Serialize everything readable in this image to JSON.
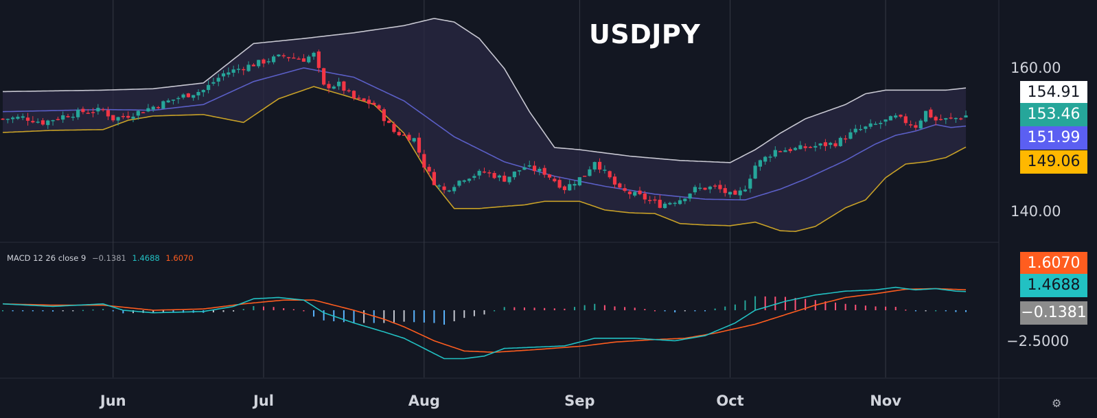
{
  "title": "USDJPY",
  "colors": {
    "background": "#131722",
    "grid": "#363a45",
    "up": "#26a69a",
    "down": "#f23645",
    "bb_upper": "#c8c8d2",
    "bb_basis": "#5b5fc7",
    "bb_lower": "#c9a227",
    "bb_fill": "#2a2843",
    "macd_line": "#22c1c3",
    "signal_line": "#ff5d1f",
    "hist_pos_up": "#26a69a",
    "hist_pos_down": "#ff5277",
    "hist_neg_down": "#5ab4ff",
    "hist_neg_up": "#c4c7d0"
  },
  "macd_legend": {
    "label": "MACD 12 26 close 9",
    "hist": "−0.1381",
    "macd": "1.4688",
    "signal": "1.6070"
  },
  "price_axis": {
    "ticks": [
      {
        "value": 160,
        "label": "160.00"
      },
      {
        "value": 140,
        "label": "140.00"
      }
    ],
    "badges": [
      {
        "label": "154.91",
        "value": 154.91,
        "bg": "#ffffff",
        "fg": "#131722"
      },
      {
        "label": "153.46",
        "value": 153.46,
        "bg": "#26a69a",
        "fg": "#ffffff"
      },
      {
        "label": "151.99",
        "value": 151.99,
        "bg": "#5b5ff2",
        "fg": "#ffffff"
      },
      {
        "label": "149.06",
        "value": 149.06,
        "bg": "#ffb800",
        "fg": "#131722"
      }
    ]
  },
  "macd_axis": {
    "ticks": [
      {
        "value": -2.5,
        "label": "−2.5000"
      }
    ],
    "badges": [
      {
        "label": "1.6070",
        "value": 1.607,
        "bg": "#ff5d1f",
        "fg": "#ffffff"
      },
      {
        "label": "1.4688",
        "value": 1.4688,
        "bg": "#22c1c3",
        "fg": "#131722"
      },
      {
        "label": "−0.1381",
        "value": -0.1381,
        "bg": "#8c8c8c",
        "fg": "#ffffff"
      }
    ]
  },
  "time_axis": {
    "labels": [
      {
        "label": "Jun",
        "day": 22
      },
      {
        "label": "Jul",
        "day": 52
      },
      {
        "label": "Aug",
        "day": 84
      },
      {
        "label": "Sep",
        "day": 115
      },
      {
        "label": "Oct",
        "day": 145
      },
      {
        "label": "Nov",
        "day": 176
      }
    ]
  },
  "chart_data": {
    "type": "candlestick",
    "title": "USDJPY",
    "day_range": [
      0,
      198
    ],
    "price_range": [
      134.75,
      168.4
    ],
    "macd_range": [
      -4.1,
      2.58
    ],
    "price_anchors": [
      [
        0,
        153.0
      ],
      [
        4,
        153.2
      ],
      [
        8,
        152.5
      ],
      [
        12,
        153.4
      ],
      [
        16,
        154.0
      ],
      [
        20,
        154.2
      ],
      [
        22,
        153.0
      ],
      [
        25,
        153.5
      ],
      [
        28,
        154.2
      ],
      [
        32,
        155.2
      ],
      [
        36,
        156.2
      ],
      [
        40,
        157.0
      ],
      [
        44,
        159.3
      ],
      [
        48,
        160.2
      ],
      [
        52,
        161.0
      ],
      [
        56,
        161.8
      ],
      [
        60,
        161.3
      ],
      [
        62,
        162.0
      ],
      [
        64,
        157.5
      ],
      [
        67,
        157.8
      ],
      [
        70,
        155.8
      ],
      [
        74,
        155.0
      ],
      [
        78,
        151.2
      ],
      [
        82,
        150.2
      ],
      [
        84,
        146.5
      ],
      [
        86,
        144.2
      ],
      [
        88,
        143.0
      ],
      [
        92,
        144.8
      ],
      [
        96,
        145.6
      ],
      [
        100,
        144.6
      ],
      [
        104,
        146.3
      ],
      [
        108,
        145.5
      ],
      [
        112,
        143.3
      ],
      [
        116,
        145.2
      ],
      [
        118,
        147.2
      ],
      [
        120,
        145.5
      ],
      [
        123,
        143.0
      ],
      [
        127,
        142.2
      ],
      [
        131,
        141.0
      ],
      [
        135,
        141.8
      ],
      [
        138,
        143.2
      ],
      [
        142,
        143.5
      ],
      [
        146,
        142.0
      ],
      [
        148,
        143.5
      ],
      [
        150,
        146.5
      ],
      [
        154,
        148.6
      ],
      [
        158,
        148.8
      ],
      [
        162,
        149.2
      ],
      [
        166,
        149.6
      ],
      [
        170,
        151.3
      ],
      [
        174,
        152.2
      ],
      [
        178,
        153.2
      ],
      [
        182,
        152.0
      ],
      [
        184,
        154.0
      ],
      [
        186,
        152.8
      ],
      [
        188,
        152.9
      ],
      [
        190,
        153.1
      ],
      [
        192,
        153.46
      ]
    ],
    "bb_upper": [
      [
        0,
        156.8
      ],
      [
        20,
        157.0
      ],
      [
        30,
        157.2
      ],
      [
        40,
        158.0
      ],
      [
        50,
        163.5
      ],
      [
        60,
        164.2
      ],
      [
        70,
        165.0
      ],
      [
        80,
        166.0
      ],
      [
        86,
        167.0
      ],
      [
        90,
        166.5
      ],
      [
        95,
        164.2
      ],
      [
        100,
        160.0
      ],
      [
        105,
        154.0
      ],
      [
        110,
        149.0
      ],
      [
        115,
        148.7
      ],
      [
        125,
        147.8
      ],
      [
        135,
        147.2
      ],
      [
        145,
        146.9
      ],
      [
        150,
        148.7
      ],
      [
        155,
        151.0
      ],
      [
        160,
        153.0
      ],
      [
        168,
        155.0
      ],
      [
        172,
        156.5
      ],
      [
        176,
        157.0
      ],
      [
        182,
        157.0
      ],
      [
        188,
        157.0
      ],
      [
        192,
        157.3
      ]
    ],
    "bb_basis": [
      [
        0,
        154.0
      ],
      [
        20,
        154.3
      ],
      [
        30,
        154.2
      ],
      [
        40,
        155.0
      ],
      [
        50,
        158.2
      ],
      [
        60,
        160.1
      ],
      [
        70,
        158.8
      ],
      [
        80,
        155.5
      ],
      [
        90,
        150.5
      ],
      [
        100,
        147.0
      ],
      [
        110,
        145.0
      ],
      [
        120,
        143.6
      ],
      [
        130,
        142.5
      ],
      [
        140,
        141.8
      ],
      [
        148,
        141.7
      ],
      [
        155,
        143.2
      ],
      [
        160,
        144.6
      ],
      [
        168,
        147.2
      ],
      [
        174,
        149.5
      ],
      [
        178,
        150.7
      ],
      [
        182,
        151.3
      ],
      [
        186,
        152.2
      ],
      [
        189,
        151.8
      ],
      [
        192,
        151.99
      ]
    ],
    "bb_lower": [
      [
        0,
        151.1
      ],
      [
        10,
        151.4
      ],
      [
        20,
        151.5
      ],
      [
        25,
        152.8
      ],
      [
        30,
        153.4
      ],
      [
        40,
        153.6
      ],
      [
        48,
        152.5
      ],
      [
        55,
        155.8
      ],
      [
        62,
        157.5
      ],
      [
        68,
        156.3
      ],
      [
        74,
        155.0
      ],
      [
        80,
        151.0
      ],
      [
        86,
        144.0
      ],
      [
        90,
        140.5
      ],
      [
        95,
        140.5
      ],
      [
        100,
        140.8
      ],
      [
        104,
        141.0
      ],
      [
        108,
        141.5
      ],
      [
        115,
        141.5
      ],
      [
        120,
        140.3
      ],
      [
        125,
        139.9
      ],
      [
        130,
        139.8
      ],
      [
        135,
        138.4
      ],
      [
        140,
        138.2
      ],
      [
        145,
        138.1
      ],
      [
        150,
        138.6
      ],
      [
        155,
        137.4
      ],
      [
        158,
        137.3
      ],
      [
        162,
        138.0
      ],
      [
        168,
        140.6
      ],
      [
        172,
        141.7
      ],
      [
        176,
        144.8
      ],
      [
        180,
        146.7
      ],
      [
        184,
        147.0
      ],
      [
        188,
        147.6
      ],
      [
        192,
        149.06
      ]
    ],
    "macd": [
      [
        0,
        0.5
      ],
      [
        10,
        0.3
      ],
      [
        20,
        0.5
      ],
      [
        24,
        0.0
      ],
      [
        30,
        -0.2
      ],
      [
        40,
        -0.1
      ],
      [
        46,
        0.3
      ],
      [
        50,
        0.9
      ],
      [
        55,
        1.0
      ],
      [
        60,
        0.8
      ],
      [
        64,
        -0.2
      ],
      [
        70,
        -1.0
      ],
      [
        76,
        -1.7
      ],
      [
        80,
        -2.2
      ],
      [
        84,
        -3.0
      ],
      [
        88,
        -3.8
      ],
      [
        92,
        -3.8
      ],
      [
        96,
        -3.6
      ],
      [
        100,
        -3.0
      ],
      [
        106,
        -2.9
      ],
      [
        112,
        -2.8
      ],
      [
        118,
        -2.2
      ],
      [
        126,
        -2.2
      ],
      [
        134,
        -2.4
      ],
      [
        140,
        -2.0
      ],
      [
        146,
        -1.0
      ],
      [
        150,
        0.0
      ],
      [
        156,
        0.7
      ],
      [
        162,
        1.2
      ],
      [
        168,
        1.5
      ],
      [
        174,
        1.6
      ],
      [
        178,
        1.8
      ],
      [
        182,
        1.6
      ],
      [
        186,
        1.7
      ],
      [
        190,
        1.5
      ],
      [
        192,
        1.4688
      ]
    ],
    "signal": [
      [
        0,
        0.5
      ],
      [
        10,
        0.4
      ],
      [
        20,
        0.4
      ],
      [
        30,
        0.0
      ],
      [
        40,
        0.1
      ],
      [
        48,
        0.5
      ],
      [
        56,
        0.8
      ],
      [
        62,
        0.8
      ],
      [
        70,
        0.0
      ],
      [
        76,
        -0.7
      ],
      [
        80,
        -1.3
      ],
      [
        86,
        -2.4
      ],
      [
        92,
        -3.2
      ],
      [
        98,
        -3.3
      ],
      [
        106,
        -3.1
      ],
      [
        116,
        -2.8
      ],
      [
        122,
        -2.5
      ],
      [
        130,
        -2.3
      ],
      [
        136,
        -2.2
      ],
      [
        142,
        -1.8
      ],
      [
        150,
        -1.1
      ],
      [
        158,
        -0.1
      ],
      [
        162,
        0.4
      ],
      [
        168,
        1.0
      ],
      [
        174,
        1.3
      ],
      [
        180,
        1.65
      ],
      [
        186,
        1.7
      ],
      [
        192,
        1.607
      ]
    ]
  }
}
